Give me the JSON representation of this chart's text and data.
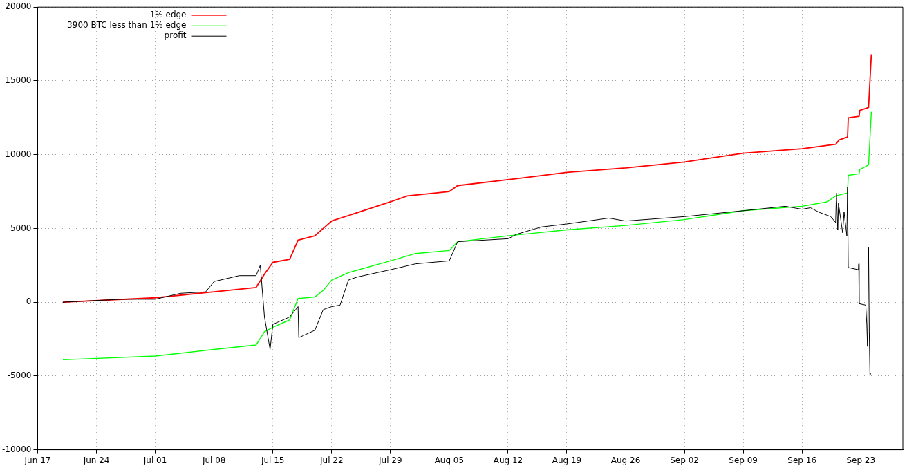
{
  "chart_data": {
    "type": "line",
    "legend": "top left",
    "grid": true,
    "line_style": "solid",
    "marker": "none",
    "xlim": [
      "--06-17",
      "--09-28"
    ],
    "xticks": [
      {
        "value": "--06-17",
        "label": "Jun 17"
      },
      {
        "value": "--06-24",
        "label": "Jun 24"
      },
      {
        "value": "--07-01",
        "label": "Jul 01"
      },
      {
        "value": "--07-08",
        "label": "Jul 08"
      },
      {
        "value": "--07-15",
        "label": "Jul 15"
      },
      {
        "value": "--07-22",
        "label": "Jul 22"
      },
      {
        "value": "--07-29",
        "label": "Jul 29"
      },
      {
        "value": "--08-05",
        "label": "Aug 05"
      },
      {
        "value": "--08-12",
        "label": "Aug 12"
      },
      {
        "value": "--08-19",
        "label": "Aug 19"
      },
      {
        "value": "--08-26",
        "label": "Aug 26"
      },
      {
        "value": "--09-02",
        "label": "Sep 02"
      },
      {
        "value": "--09-09",
        "label": "Sep 09"
      },
      {
        "value": "--09-16",
        "label": "Sep 16"
      },
      {
        "value": "--09-23",
        "label": "Sep 23"
      }
    ],
    "ylim": [
      -10000,
      20000
    ],
    "yticks": [
      -10000,
      -5000,
      0,
      5000,
      10000,
      15000,
      20000
    ],
    "series": [
      {
        "name": "1% edge",
        "color": "#ff0000",
        "x": [
          "--06-20",
          "--07-01",
          "--07-08",
          "--07-13",
          "--07-14",
          "--07-15",
          "--07-17",
          "--07-18",
          "--07-20",
          "--07-21",
          "--07-22",
          "--07-29",
          "--07-31",
          "--08-05",
          "--08-06",
          "--08-12",
          "--08-19",
          "--08-26",
          "--09-02",
          "--09-09",
          "--09-16",
          "--09-18",
          "--09-20",
          "--09-20T10:00",
          "--09-21T10:00",
          "--09-21T12:00",
          "--09-22T19:00",
          "--09-22T21:00",
          "--09-23T22:00",
          "--09-24T06:00"
        ],
        "values": [
          0,
          300,
          700,
          1000,
          1900,
          2700,
          2900,
          4200,
          4500,
          5000,
          5500,
          6800,
          7200,
          7500,
          7900,
          8300,
          8800,
          9100,
          9500,
          10100,
          10400,
          10550,
          10700,
          11000,
          11200,
          12500,
          12600,
          13000,
          13200,
          16800
        ]
      },
      {
        "name": "3900 BTC less than 1% edge",
        "color": "#00ff00",
        "x": [
          "--06-20",
          "--07-01",
          "--07-08",
          "--07-13",
          "--07-14",
          "--07-15",
          "--07-17",
          "--07-18",
          "--07-20",
          "--07-21",
          "--07-22",
          "--07-24",
          "--07-29",
          "--08-01",
          "--08-05",
          "--08-06",
          "--08-12",
          "--08-19",
          "--08-26",
          "--09-02",
          "--09-09",
          "--09-16",
          "--09-19",
          "--09-20",
          "--09-21T10:00",
          "--09-21T12:00",
          "--09-22T19:00",
          "--09-22T21:00",
          "--09-23T22:00",
          "--09-24T06:00"
        ],
        "values": [
          -3900,
          -3650,
          -3200,
          -2900,
          -2000,
          -1700,
          -1200,
          250,
          350,
          800,
          1500,
          2000,
          2800,
          3300,
          3500,
          4100,
          4500,
          4900,
          5200,
          5600,
          6200,
          6500,
          6800,
          7200,
          7400,
          8600,
          8700,
          9000,
          9300,
          12900
        ]
      },
      {
        "name": "profit",
        "color": "#000000",
        "x": [
          "--06-20",
          "--06-27",
          "--07-01",
          "--07-04",
          "--07-07",
          "--07-08",
          "--07-11",
          "--07-13",
          "--07-13T12:00",
          "--07-14",
          "--07-14T16:00",
          "--07-15",
          "--07-17",
          "--07-18",
          "--07-18T02:00",
          "--07-20",
          "--07-21",
          "--07-22",
          "--07-23",
          "--07-24",
          "--07-25",
          "--07-29",
          "--08-01",
          "--08-05",
          "--08-06",
          "--08-12",
          "--08-13",
          "--08-16",
          "--08-19",
          "--08-24",
          "--08-26",
          "--09-02",
          "--09-09",
          "--09-14",
          "--09-16",
          "--09-17",
          "--09-18",
          "--09-19T10:00",
          "--09-20",
          "--09-20T02:00",
          "--09-20T06:00",
          "--09-20T08:00",
          "--09-20T20:00",
          "--09-21",
          "--09-21T08:00",
          "--09-21T10:00",
          "--09-21T12:00",
          "--09-22T17:00",
          "--09-22T18:00",
          "--09-22T19:00",
          "--09-23T14:00",
          "--09-23T17:00",
          "--09-23T19:00",
          "--09-23T22:00",
          "--09-24T00:00",
          "--09-24T02:00",
          "--09-24T04:00"
        ],
        "values": [
          0,
          200,
          200,
          600,
          700,
          1400,
          1800,
          1800,
          2500,
          -1000,
          -3200,
          -1500,
          -1000,
          -300,
          -2400,
          -1900,
          -500,
          -300,
          -200,
          1500,
          1700,
          2200,
          2600,
          2800,
          4100,
          4300,
          4600,
          5100,
          5300,
          5700,
          5500,
          5800,
          6200,
          6500,
          6300,
          6400,
          6100,
          5800,
          5400,
          7400,
          4900,
          6700,
          4700,
          6100,
          4500,
          7800,
          2350,
          2200,
          2600,
          -100,
          -200,
          -1500,
          -3000,
          3700,
          -2000,
          -5000,
          -4800
        ]
      }
    ]
  }
}
